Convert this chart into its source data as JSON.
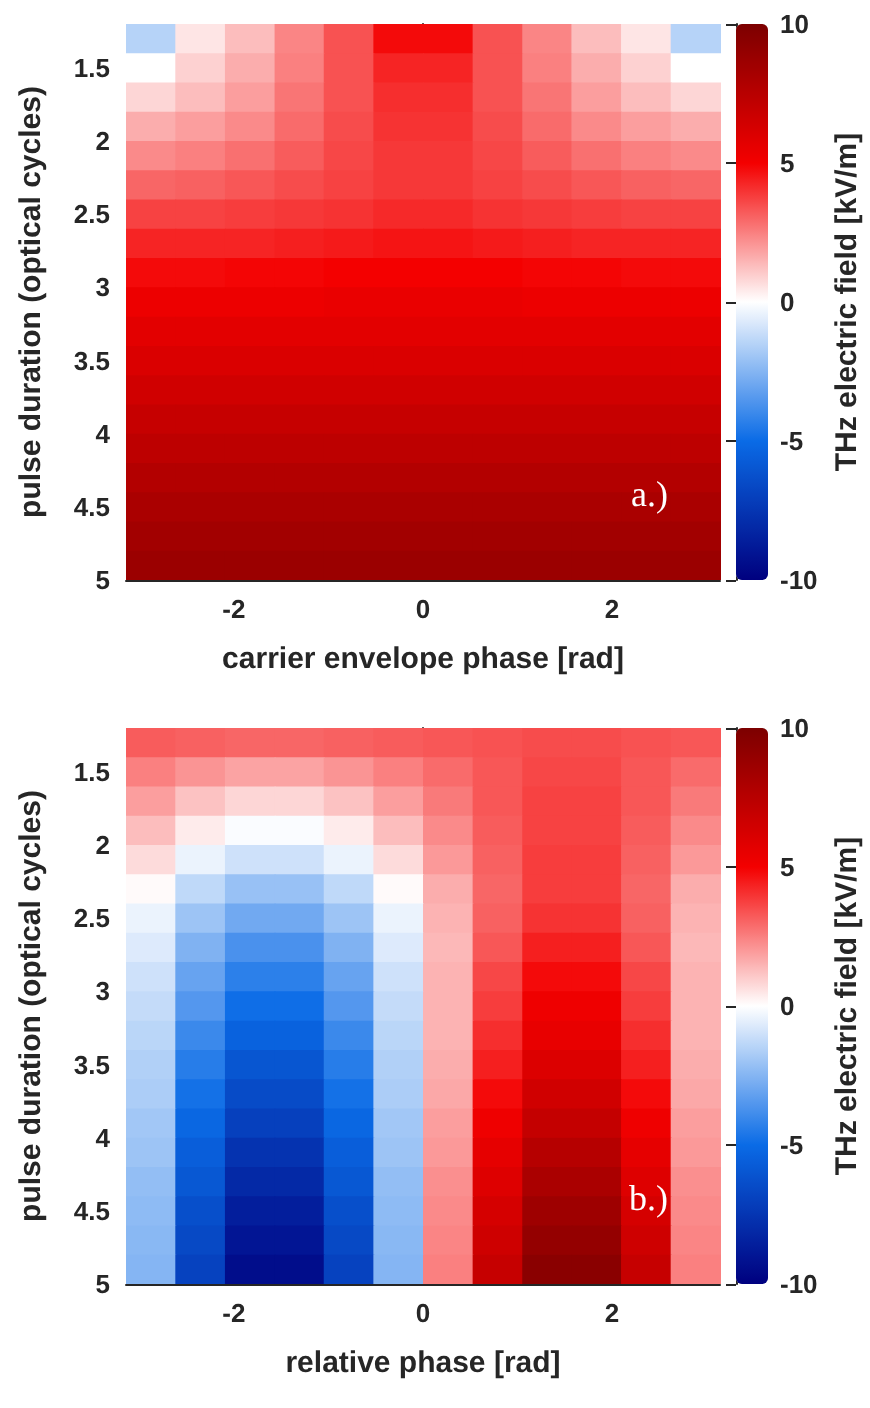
{
  "chart_data": [
    {
      "type": "heatmap",
      "xlabel": "carrier envelope phase [rad]",
      "ylabel": "pulse duration (optical cycles)",
      "clabel": "THz electric field [kV/m]",
      "annotations": [
        "a.)"
      ],
      "x": [
        -2.88,
        -2.36,
        -1.83,
        -1.31,
        -0.79,
        -0.26,
        0.26,
        0.79,
        1.31,
        1.83,
        2.36,
        2.88
      ],
      "y": [
        1.3,
        1.5,
        1.7,
        1.9,
        2.1,
        2.3,
        2.5,
        2.7,
        2.9,
        3.1,
        3.3,
        3.5,
        3.7,
        3.9,
        4.1,
        4.3,
        4.5,
        4.7,
        4.9
      ],
      "cells": [
        [
          -1.5,
          0.5,
          1.3,
          2.4,
          3.4,
          4.8,
          4.8,
          3.4,
          2.4,
          1.3,
          0.5,
          -1.5
        ],
        [
          0.0,
          0.9,
          1.6,
          2.5,
          3.4,
          4.3,
          4.3,
          3.4,
          2.5,
          1.6,
          0.9,
          0.0
        ],
        [
          0.8,
          1.3,
          1.9,
          2.7,
          3.4,
          4.1,
          4.1,
          3.4,
          2.7,
          1.9,
          1.3,
          0.8
        ],
        [
          1.6,
          1.9,
          2.3,
          2.9,
          3.5,
          4.0,
          4.0,
          3.5,
          2.9,
          2.3,
          1.9,
          1.6
        ],
        [
          2.3,
          2.5,
          2.8,
          3.2,
          3.6,
          3.9,
          3.9,
          3.6,
          3.2,
          2.8,
          2.5,
          2.3
        ],
        [
          3.0,
          3.1,
          3.3,
          3.5,
          3.7,
          3.9,
          3.9,
          3.7,
          3.5,
          3.3,
          3.1,
          3.0
        ],
        [
          3.7,
          3.7,
          3.8,
          3.9,
          4.0,
          4.2,
          4.2,
          4.0,
          3.9,
          3.8,
          3.7,
          3.7
        ],
        [
          4.3,
          4.3,
          4.3,
          4.4,
          4.5,
          4.6,
          4.6,
          4.5,
          4.4,
          4.3,
          4.3,
          4.3
        ],
        [
          4.8,
          4.8,
          4.9,
          4.9,
          5.0,
          5.0,
          5.0,
          5.0,
          4.9,
          4.9,
          4.8,
          4.8
        ],
        [
          5.3,
          5.3,
          5.3,
          5.3,
          5.4,
          5.4,
          5.4,
          5.4,
          5.3,
          5.3,
          5.3,
          5.3
        ],
        [
          5.7,
          5.7,
          5.7,
          5.7,
          5.7,
          5.7,
          5.7,
          5.7,
          5.7,
          5.7,
          5.7,
          5.7
        ],
        [
          6.1,
          6.1,
          6.1,
          6.1,
          6.1,
          6.1,
          6.1,
          6.1,
          6.1,
          6.1,
          6.1,
          6.1
        ],
        [
          6.5,
          6.5,
          6.5,
          6.5,
          6.5,
          6.5,
          6.5,
          6.5,
          6.5,
          6.5,
          6.5,
          6.5
        ],
        [
          6.9,
          6.9,
          6.9,
          6.9,
          6.9,
          6.9,
          6.9,
          6.9,
          6.9,
          6.9,
          6.9,
          6.9
        ],
        [
          7.3,
          7.3,
          7.3,
          7.3,
          7.3,
          7.3,
          7.3,
          7.3,
          7.3,
          7.3,
          7.3,
          7.3
        ],
        [
          7.7,
          7.7,
          7.7,
          7.7,
          7.7,
          7.7,
          7.7,
          7.7,
          7.7,
          7.7,
          7.7,
          7.7
        ],
        [
          8.1,
          8.1,
          8.1,
          8.1,
          8.1,
          8.1,
          8.1,
          8.1,
          8.1,
          8.1,
          8.1,
          8.1
        ],
        [
          8.4,
          8.4,
          8.4,
          8.4,
          8.4,
          8.4,
          8.4,
          8.4,
          8.4,
          8.4,
          8.4,
          8.4
        ],
        [
          8.7,
          8.7,
          8.7,
          8.7,
          8.7,
          8.7,
          8.7,
          8.7,
          8.7,
          8.7,
          8.7,
          8.7
        ]
      ],
      "colors": [
        "#00007f",
        "#0a6be6",
        "#ffffff",
        "#f40000",
        "#7c0000"
      ],
      "clim": [
        -10,
        10
      ],
      "cticks": [
        -10,
        -5,
        0,
        5,
        10
      ],
      "xlim": [
        -3.1416,
        3.1416
      ],
      "xticks": [
        -2,
        0,
        2
      ],
      "ylim": [
        5,
        1.2
      ],
      "yticks": [
        1.5,
        2,
        2.5,
        3,
        3.5,
        4,
        4.5,
        5
      ]
    },
    {
      "type": "heatmap",
      "xlabel": "relative phase [rad]",
      "ylabel": "pulse duration (optical cycles)",
      "clabel": "THz electric field [kV/m]",
      "annotations": [
        "b.)"
      ],
      "x": [
        -2.88,
        -2.36,
        -1.83,
        -1.31,
        -0.79,
        -0.26,
        0.26,
        0.79,
        1.31,
        1.83,
        2.36,
        2.88
      ],
      "y": [
        1.3,
        1.5,
        1.7,
        1.9,
        2.1,
        2.3,
        2.5,
        2.7,
        2.9,
        3.1,
        3.3,
        3.5,
        3.7,
        3.9,
        4.1,
        4.3,
        4.5,
        4.7,
        4.9
      ],
      "cells": [
        [
          3.2,
          3.1,
          3.0,
          3.0,
          3.1,
          3.2,
          3.3,
          3.4,
          3.5,
          3.5,
          3.4,
          3.3
        ],
        [
          2.5,
          2.1,
          1.8,
          1.8,
          2.1,
          2.5,
          2.9,
          3.3,
          3.6,
          3.6,
          3.3,
          2.9
        ],
        [
          1.9,
          1.2,
          0.8,
          0.8,
          1.2,
          1.9,
          2.6,
          3.3,
          3.7,
          3.7,
          3.3,
          2.6
        ],
        [
          1.3,
          0.4,
          -0.1,
          -0.1,
          0.4,
          1.3,
          2.3,
          3.2,
          3.7,
          3.7,
          3.2,
          2.3
        ],
        [
          0.7,
          -0.4,
          -1.0,
          -1.0,
          -0.4,
          0.7,
          2.0,
          3.1,
          3.8,
          3.8,
          3.1,
          2.0
        ],
        [
          0.1,
          -1.3,
          -2.1,
          -2.1,
          -1.3,
          0.1,
          1.6,
          3.0,
          3.8,
          3.8,
          3.0,
          1.6
        ],
        [
          -0.4,
          -2.0,
          -2.9,
          -2.9,
          -2.0,
          -0.4,
          1.5,
          3.1,
          4.0,
          4.0,
          3.1,
          1.5
        ],
        [
          -0.7,
          -2.6,
          -3.7,
          -3.7,
          -2.6,
          -0.7,
          1.4,
          3.3,
          4.4,
          4.4,
          3.3,
          1.4
        ],
        [
          -1.0,
          -3.1,
          -4.3,
          -4.3,
          -3.1,
          -1.0,
          1.5,
          3.6,
          4.8,
          4.8,
          3.6,
          1.5
        ],
        [
          -1.2,
          -3.5,
          -4.9,
          -4.9,
          -3.5,
          -1.2,
          1.5,
          3.8,
          5.2,
          5.2,
          3.8,
          1.5
        ],
        [
          -1.4,
          -4.0,
          -5.4,
          -5.4,
          -4.0,
          -1.4,
          1.5,
          4.1,
          5.5,
          5.5,
          4.1,
          1.5
        ],
        [
          -1.6,
          -4.4,
          -6.0,
          -6.0,
          -4.4,
          -1.6,
          1.6,
          4.4,
          6.0,
          6.0,
          4.4,
          1.6
        ],
        [
          -1.7,
          -4.8,
          -6.5,
          -6.5,
          -4.8,
          -1.7,
          1.7,
          4.8,
          6.5,
          6.5,
          4.8,
          1.7
        ],
        [
          -1.9,
          -5.2,
          -7.0,
          -7.0,
          -5.2,
          -1.9,
          1.9,
          5.2,
          7.0,
          7.0,
          5.2,
          1.9
        ],
        [
          -2.0,
          -5.6,
          -7.6,
          -7.6,
          -5.6,
          -2.0,
          2.0,
          5.6,
          7.6,
          7.6,
          5.6,
          2.0
        ],
        [
          -2.2,
          -5.9,
          -8.1,
          -8.1,
          -5.9,
          -2.2,
          2.2,
          5.9,
          8.1,
          8.1,
          5.9,
          2.2
        ],
        [
          -2.3,
          -6.3,
          -8.6,
          -8.6,
          -6.3,
          -2.3,
          2.3,
          6.3,
          8.6,
          8.6,
          6.3,
          2.3
        ],
        [
          -2.4,
          -6.6,
          -9.0,
          -9.0,
          -6.6,
          -2.4,
          2.4,
          6.6,
          9.0,
          9.0,
          6.6,
          2.4
        ],
        [
          -2.5,
          -6.9,
          -9.4,
          -9.4,
          -6.9,
          -2.5,
          2.5,
          6.9,
          9.4,
          9.4,
          6.9,
          2.5
        ]
      ],
      "colors": [
        "#00007f",
        "#0a6be6",
        "#ffffff",
        "#f40000",
        "#7c0000"
      ],
      "clim": [
        -10,
        10
      ],
      "cticks": [
        -10,
        -5,
        0,
        5,
        10
      ],
      "xlim": [
        -3.1416,
        3.1416
      ],
      "xticks": [
        -2,
        0,
        2
      ],
      "ylim": [
        5,
        1.2
      ],
      "yticks": [
        1.5,
        2,
        2.5,
        3,
        3.5,
        4,
        4.5,
        5
      ]
    }
  ]
}
